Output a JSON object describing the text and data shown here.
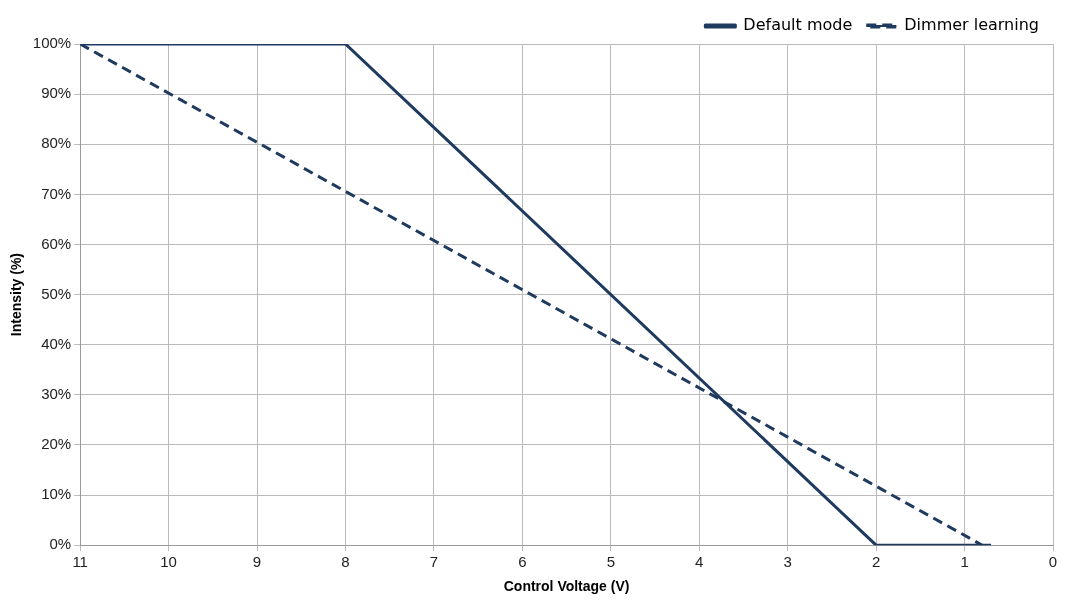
{
  "chart_data": {
    "type": "line",
    "xlabel": "Control Voltage (V)",
    "ylabel": "Intensity (%)",
    "xlim": [
      11,
      0
    ],
    "xticks": [
      11,
      10,
      9,
      8,
      7,
      6,
      5,
      4,
      3,
      2,
      1,
      0
    ],
    "ylim": [
      0,
      100
    ],
    "yticks": [
      {
        "value": 0,
        "label": "0%"
      },
      {
        "value": 10,
        "label": "10%"
      },
      {
        "value": 20,
        "label": "20%"
      },
      {
        "value": 30,
        "label": "30%"
      },
      {
        "value": 40,
        "label": "40%"
      },
      {
        "value": 50,
        "label": "50%"
      },
      {
        "value": 60,
        "label": "60%"
      },
      {
        "value": 70,
        "label": "70%"
      },
      {
        "value": 80,
        "label": "80%"
      },
      {
        "value": 90,
        "label": "90%"
      },
      {
        "value": 100,
        "label": "100%"
      }
    ],
    "grid": true,
    "legend": "top right",
    "marker": "none",
    "series": [
      {
        "name": "Default mode",
        "color": "#1f3a5f",
        "line_style": "solid",
        "x": [
          11,
          8,
          2,
          0.7
        ],
        "values": [
          100,
          100,
          0,
          0
        ]
      },
      {
        "name": "Dimmer learning",
        "color": "#1f3a5f",
        "line_style": "dashed",
        "x": [
          11,
          0.8
        ],
        "values": [
          100,
          0
        ]
      }
    ]
  }
}
